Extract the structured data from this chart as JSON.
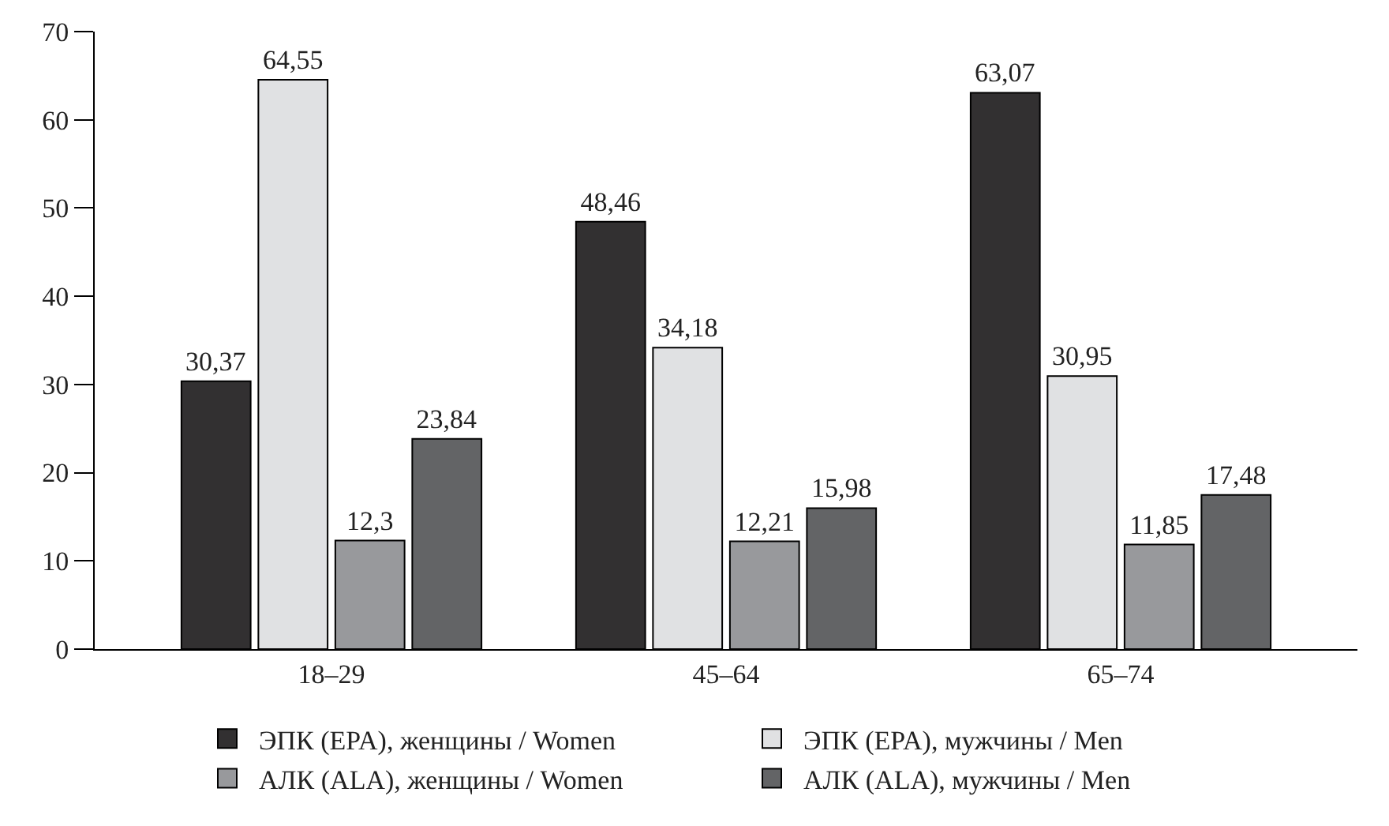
{
  "chart_data": {
    "type": "bar",
    "categories": [
      "18–29",
      "45–64",
      "65–74"
    ],
    "series": [
      {
        "name": "ЭПК (EPA), женщины / Women",
        "color": "#323031",
        "values": [
          30.37,
          48.46,
          63.07
        ]
      },
      {
        "name": "ЭПК (EPA), мужчины / Men",
        "color": "#e0e1e3",
        "values": [
          64.55,
          34.18,
          30.95
        ]
      },
      {
        "name": "АЛК (ALA), женщины / Women",
        "color": "#98999c",
        "values": [
          12.3,
          12.21,
          11.85
        ]
      },
      {
        "name": "АЛК (ALA), мужчины / Men",
        "color": "#636466",
        "values": [
          23.84,
          15.98,
          17.48
        ]
      }
    ],
    "ylim": [
      0,
      70
    ],
    "yticks": [
      0,
      10,
      20,
      30,
      40,
      50,
      60,
      70
    ],
    "value_labels": [
      [
        "30,37",
        "48,46",
        "63,07"
      ],
      [
        "64,55",
        "34,18",
        "30,95"
      ],
      [
        "12,3",
        "12,21",
        "11,85"
      ],
      [
        "23,84",
        "15,98",
        "17,48"
      ]
    ],
    "legend": "bottom"
  }
}
